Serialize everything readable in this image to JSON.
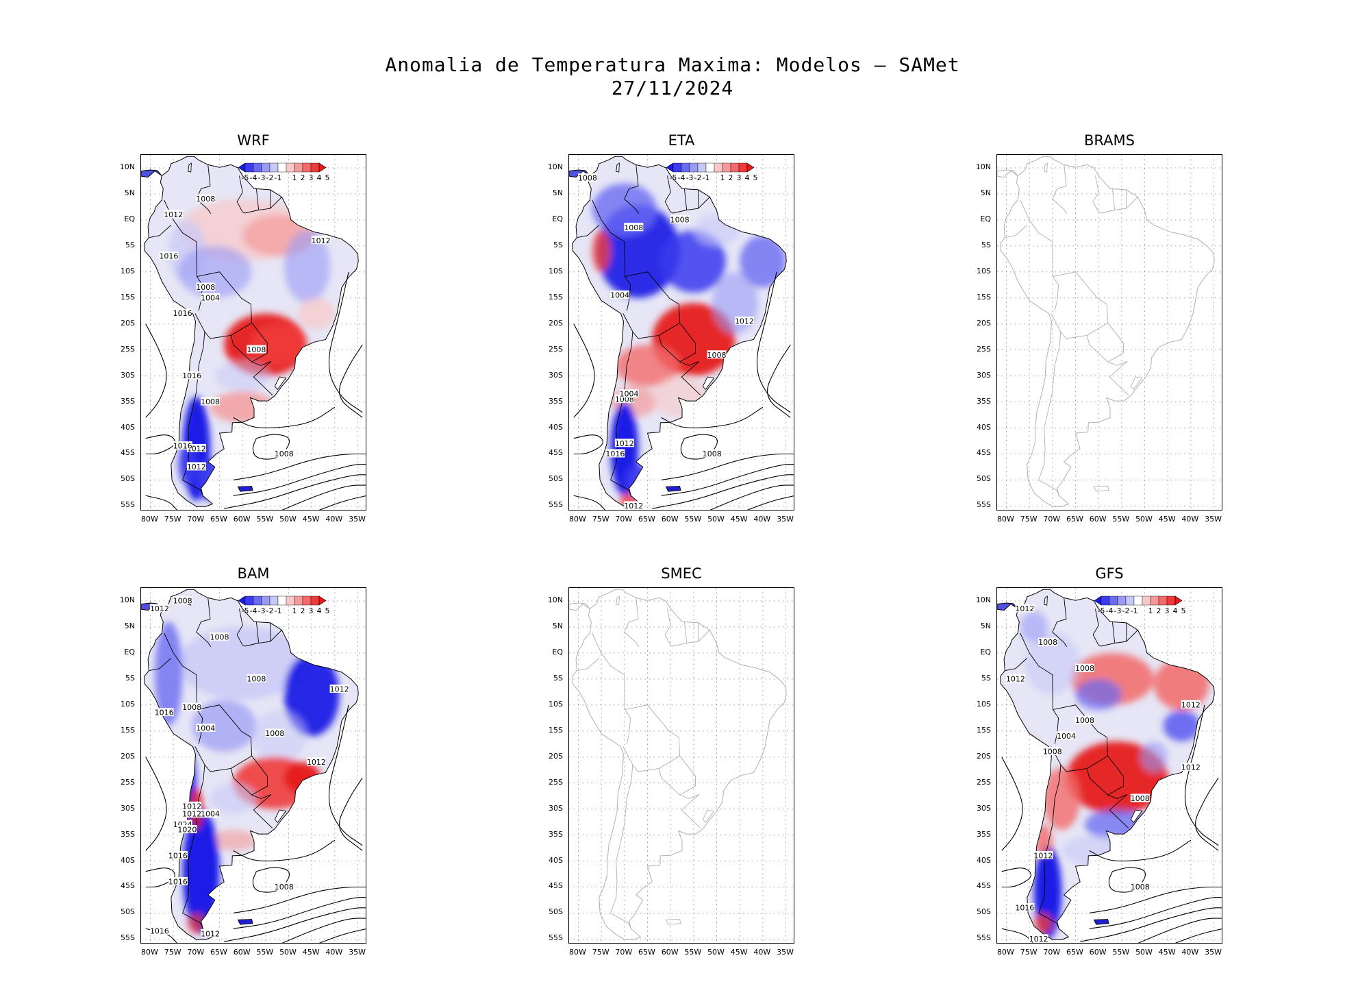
{
  "title_line1": "Anomalia de Temperatura Maxima: Modelos — SAMet",
  "title_line2": "27/11/2024",
  "lat_labels": [
    "10N",
    "5N",
    "EQ",
    "5S",
    "10S",
    "15S",
    "20S",
    "25S",
    "30S",
    "35S",
    "40S",
    "45S",
    "50S",
    "55S"
  ],
  "lon_labels": [
    "80W",
    "75W",
    "70W",
    "65W",
    "60W",
    "55W",
    "50W",
    "45W",
    "40W",
    "35W"
  ],
  "colorbar": {
    "labels": [
      "-5",
      "-4",
      "-3",
      "-2",
      "-1",
      "1",
      "2",
      "3",
      "4",
      "5"
    ],
    "colors": [
      "#1a1ae6",
      "#3b3bef",
      "#6a6af2",
      "#9a9af5",
      "#c8c8f8",
      "#ffffff",
      "#f8c8c8",
      "#f59a9a",
      "#f26a6a",
      "#ef3b3b",
      "#e61a1a"
    ]
  },
  "contour_unit_labels": [
    "1004",
    "1008",
    "1012",
    "1016",
    "1020",
    "1024"
  ],
  "panels": [
    {
      "name": "WRF",
      "has_data": true,
      "pressure_labels": [
        "1008",
        "1012",
        "1016",
        "1008",
        "1004",
        "1012",
        "1016",
        "1008",
        "1016",
        "1008",
        "1012",
        "1016",
        "1012",
        "1008"
      ]
    },
    {
      "name": "ETA",
      "has_data": true,
      "pressure_labels": [
        "1008",
        "1008",
        "1008",
        "1004",
        "1012",
        "1008",
        "1008",
        "1004",
        "1012",
        "1016",
        "1008",
        "1012"
      ]
    },
    {
      "name": "BRAMS",
      "has_data": false,
      "pressure_labels": []
    },
    {
      "name": "BAM",
      "has_data": true,
      "pressure_labels": [
        "1008",
        "1012",
        "1008",
        "1008",
        "1012",
        "1008",
        "1016",
        "1004",
        "1008",
        "1012",
        "1012",
        "1012",
        "1004",
        "1024",
        "1020",
        "1016",
        "1016",
        "1008",
        "1016",
        "1012"
      ]
    },
    {
      "name": "SMEC",
      "has_data": false,
      "pressure_labels": []
    },
    {
      "name": "GFS",
      "has_data": true,
      "pressure_labels": [
        "1012",
        "1008",
        "1008",
        "1012",
        "1012",
        "1008",
        "1004",
        "1008",
        "1012",
        "1008",
        "1012",
        "1008",
        "1016",
        "1012"
      ]
    }
  ]
}
